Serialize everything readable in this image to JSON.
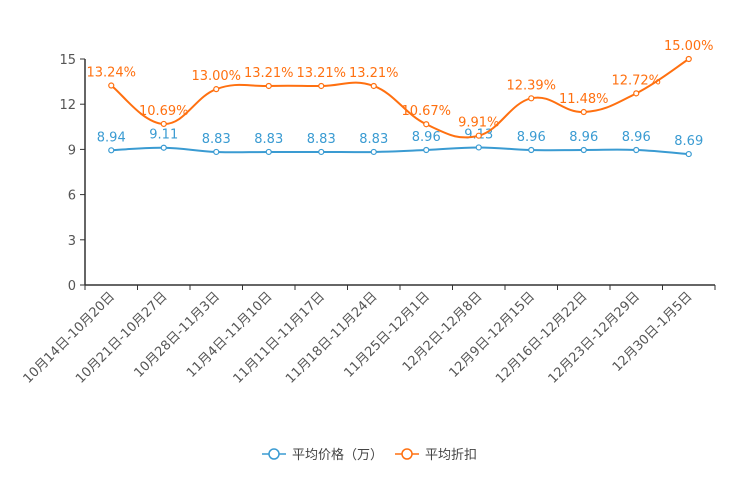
{
  "chart_data": {
    "type": "line",
    "title": "",
    "xlabel": "",
    "ylabel": "",
    "ylim": [
      0,
      15
    ],
    "yticks": [
      "0",
      "3",
      "6",
      "9",
      "12",
      "15"
    ],
    "grid": false,
    "legend_position": "bottom",
    "categories": [
      "10月14日-10月20日",
      "10月21日-10月27日",
      "10月28日-11月3日",
      "11月4日-11月10日",
      "11月11日-11月17日",
      "11月18日-11月24日",
      "11月25日-12月1日",
      "12月2日-12月8日",
      "12月9日-12月15日",
      "12月16日-12月22日",
      "12月23日-12月29日",
      "12月30日-1月5日"
    ],
    "series": [
      {
        "name": "平均价格（万）",
        "color": "#3a9bd2",
        "values": [
          8.94,
          9.11,
          8.83,
          8.83,
          8.83,
          8.83,
          8.96,
          9.13,
          8.96,
          8.96,
          8.96,
          8.69
        ],
        "labels": [
          "8.94",
          "9.11",
          "8.83",
          "8.83",
          "8.83",
          "8.83",
          "8.96",
          "9.13",
          "8.96",
          "8.96",
          "8.96",
          "8.69"
        ]
      },
      {
        "name": "平均折扣",
        "color": "#ff7010",
        "values": [
          13.24,
          10.69,
          13.0,
          13.21,
          13.21,
          13.21,
          10.67,
          9.91,
          12.39,
          11.48,
          12.72,
          15.0
        ],
        "labels": [
          "13.24%",
          "10.69%",
          "13.00%",
          "13.21%",
          "13.21%",
          "13.21%",
          "10.67%",
          "9.91%",
          "12.39%",
          "11.48%",
          "12.72%",
          "15.00%"
        ]
      }
    ]
  }
}
